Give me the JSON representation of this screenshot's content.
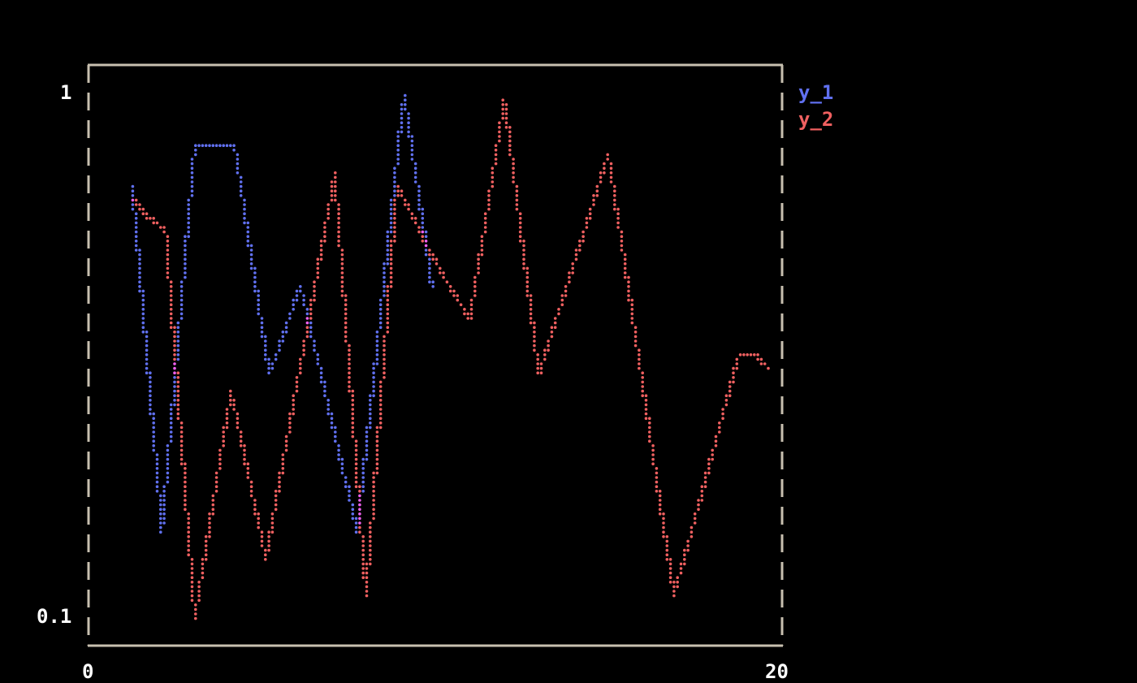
{
  "chart_data": {
    "type": "line",
    "title": "",
    "xlabel": "",
    "ylabel": "",
    "xlim": [
      0,
      20
    ],
    "ylim": [
      0.1,
      1
    ],
    "yscale": "log",
    "grid": false,
    "legend_placement": "right",
    "x_tick_labels": [
      "0",
      "20"
    ],
    "y_tick_labels": [
      "1",
      "0.1"
    ],
    "border_color": "#c8c0b0",
    "series": [
      {
        "name": "y_1",
        "color": "#6070f0",
        "x": [
          1.24,
          2.1,
          3.05,
          4.2,
          5.2,
          6.1,
          7.75,
          9.1,
          9.9
        ],
        "y": [
          0.67,
          0.146,
          0.8,
          0.8,
          0.29,
          0.43,
          0.146,
          1.0,
          0.43
        ]
      },
      {
        "name": "y_2",
        "color": "#f06060",
        "x": [
          1.24,
          1.6,
          2.2,
          3.05,
          4.1,
          5.1,
          7.1,
          8.0,
          8.9,
          10.2,
          11.0,
          12.0,
          13.0,
          15.0,
          16.9,
          18.8,
          19.2,
          19.6
        ],
        "y": [
          0.63,
          0.59,
          0.55,
          0.1,
          0.27,
          0.13,
          0.7,
          0.11,
          0.67,
          0.45,
          0.37,
          0.97,
          0.29,
          0.77,
          0.11,
          0.32,
          0.32,
          0.3
        ]
      }
    ]
  }
}
